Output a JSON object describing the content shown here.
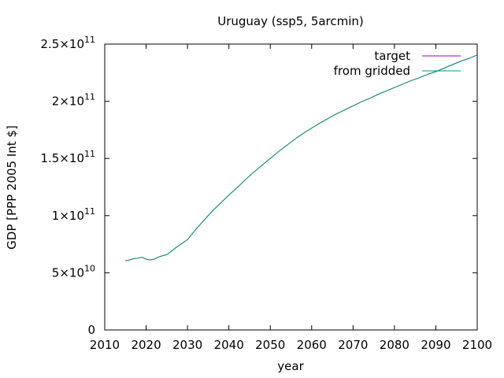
{
  "chart_data": {
    "type": "line",
    "title": "Uruguay (ssp5, 5arcmin)",
    "xlabel": "year",
    "ylabel": "GDP [PPP 2005 Int $]",
    "xlim": [
      2010,
      2100
    ],
    "ylim": [
      0,
      250000000000
    ],
    "x_ticks": [
      "2010",
      "2020",
      "2030",
      "2040",
      "2050",
      "2060",
      "2070",
      "2080",
      "2090",
      "2100"
    ],
    "y_ticks": [
      {
        "value": 0,
        "mantissa": "0",
        "exponent": ""
      },
      {
        "value": 50000000000,
        "mantissa": "5×10",
        "exponent": "10"
      },
      {
        "value": 100000000000,
        "mantissa": "1×10",
        "exponent": "11"
      },
      {
        "value": 150000000000,
        "mantissa": "1.5×10",
        "exponent": "11"
      },
      {
        "value": 200000000000,
        "mantissa": "2×10",
        "exponent": "11"
      },
      {
        "value": 250000000000,
        "mantissa": "2.5×10",
        "exponent": "11"
      }
    ],
    "grid": false,
    "legend_position": "top-right",
    "x": [
      2015,
      2016,
      2017,
      2018,
      2019,
      2020,
      2021,
      2022,
      2023,
      2024,
      2025,
      2026,
      2027,
      2028,
      2029,
      2030,
      2032,
      2034,
      2036,
      2038,
      2040,
      2042,
      2044,
      2046,
      2048,
      2050,
      2052,
      2054,
      2056,
      2058,
      2060,
      2062,
      2064,
      2066,
      2068,
      2070,
      2072,
      2074,
      2076,
      2078,
      2080,
      2082,
      2084,
      2086,
      2088,
      2090,
      2092,
      2094,
      2096,
      2098,
      2100
    ],
    "series": [
      {
        "name": "target",
        "color": "#9400d3",
        "values": [
          60500000000,
          61200000000,
          62400000000,
          62800000000,
          63500000000,
          62000000000,
          61200000000,
          62000000000,
          63800000000,
          65000000000,
          65800000000,
          68500000000,
          71500000000,
          74000000000,
          76500000000,
          79000000000,
          88000000000,
          96000000000,
          104000000000,
          111000000000,
          118000000000,
          124500000000,
          131500000000,
          138000000000,
          144000000000,
          150000000000,
          156000000000,
          161500000000,
          167000000000,
          172000000000,
          176500000000,
          181000000000,
          185000000000,
          189000000000,
          192500000000,
          196000000000,
          199500000000,
          202500000000,
          206000000000,
          209000000000,
          212000000000,
          215000000000,
          218000000000,
          220500000000,
          223500000000,
          226000000000,
          229000000000,
          232000000000,
          235000000000,
          237500000000,
          240500000000
        ]
      },
      {
        "name": "from gridded",
        "color": "#009e73",
        "values": [
          60500000000,
          61200000000,
          62400000000,
          62800000000,
          63500000000,
          62000000000,
          61200000000,
          62000000000,
          63800000000,
          65000000000,
          65800000000,
          68500000000,
          71500000000,
          74000000000,
          76500000000,
          79000000000,
          88000000000,
          96000000000,
          104000000000,
          111000000000,
          118000000000,
          124500000000,
          131500000000,
          138000000000,
          144000000000,
          150000000000,
          156000000000,
          161500000000,
          167000000000,
          172000000000,
          176500000000,
          181000000000,
          185000000000,
          189000000000,
          192500000000,
          196000000000,
          199500000000,
          202500000000,
          206000000000,
          209000000000,
          212000000000,
          215000000000,
          218000000000,
          220500000000,
          223500000000,
          226000000000,
          229000000000,
          232000000000,
          235000000000,
          237500000000,
          240500000000
        ]
      }
    ]
  }
}
